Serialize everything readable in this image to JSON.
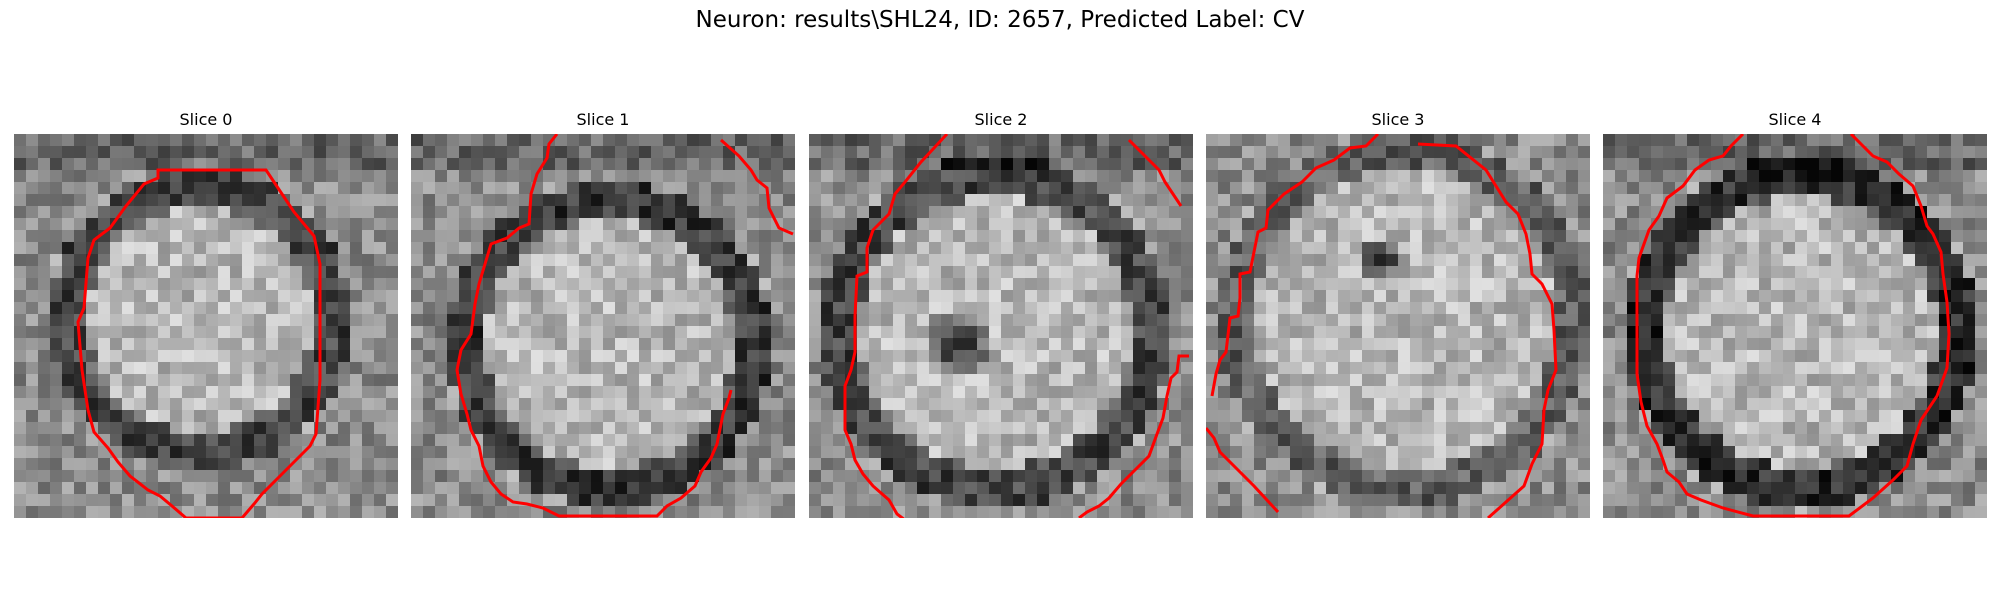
{
  "figure": {
    "suptitle": "Neuron: results\\SHL24, ID: 2657, Predicted Label: CV",
    "panels": [
      {
        "title": "Slice 0"
      },
      {
        "title": "Slice 1"
      },
      {
        "title": "Slice 2"
      },
      {
        "title": "Slice 3"
      },
      {
        "title": "Slice 4"
      }
    ],
    "colormap": "grayscale",
    "contour_color": "#ff0000"
  }
}
